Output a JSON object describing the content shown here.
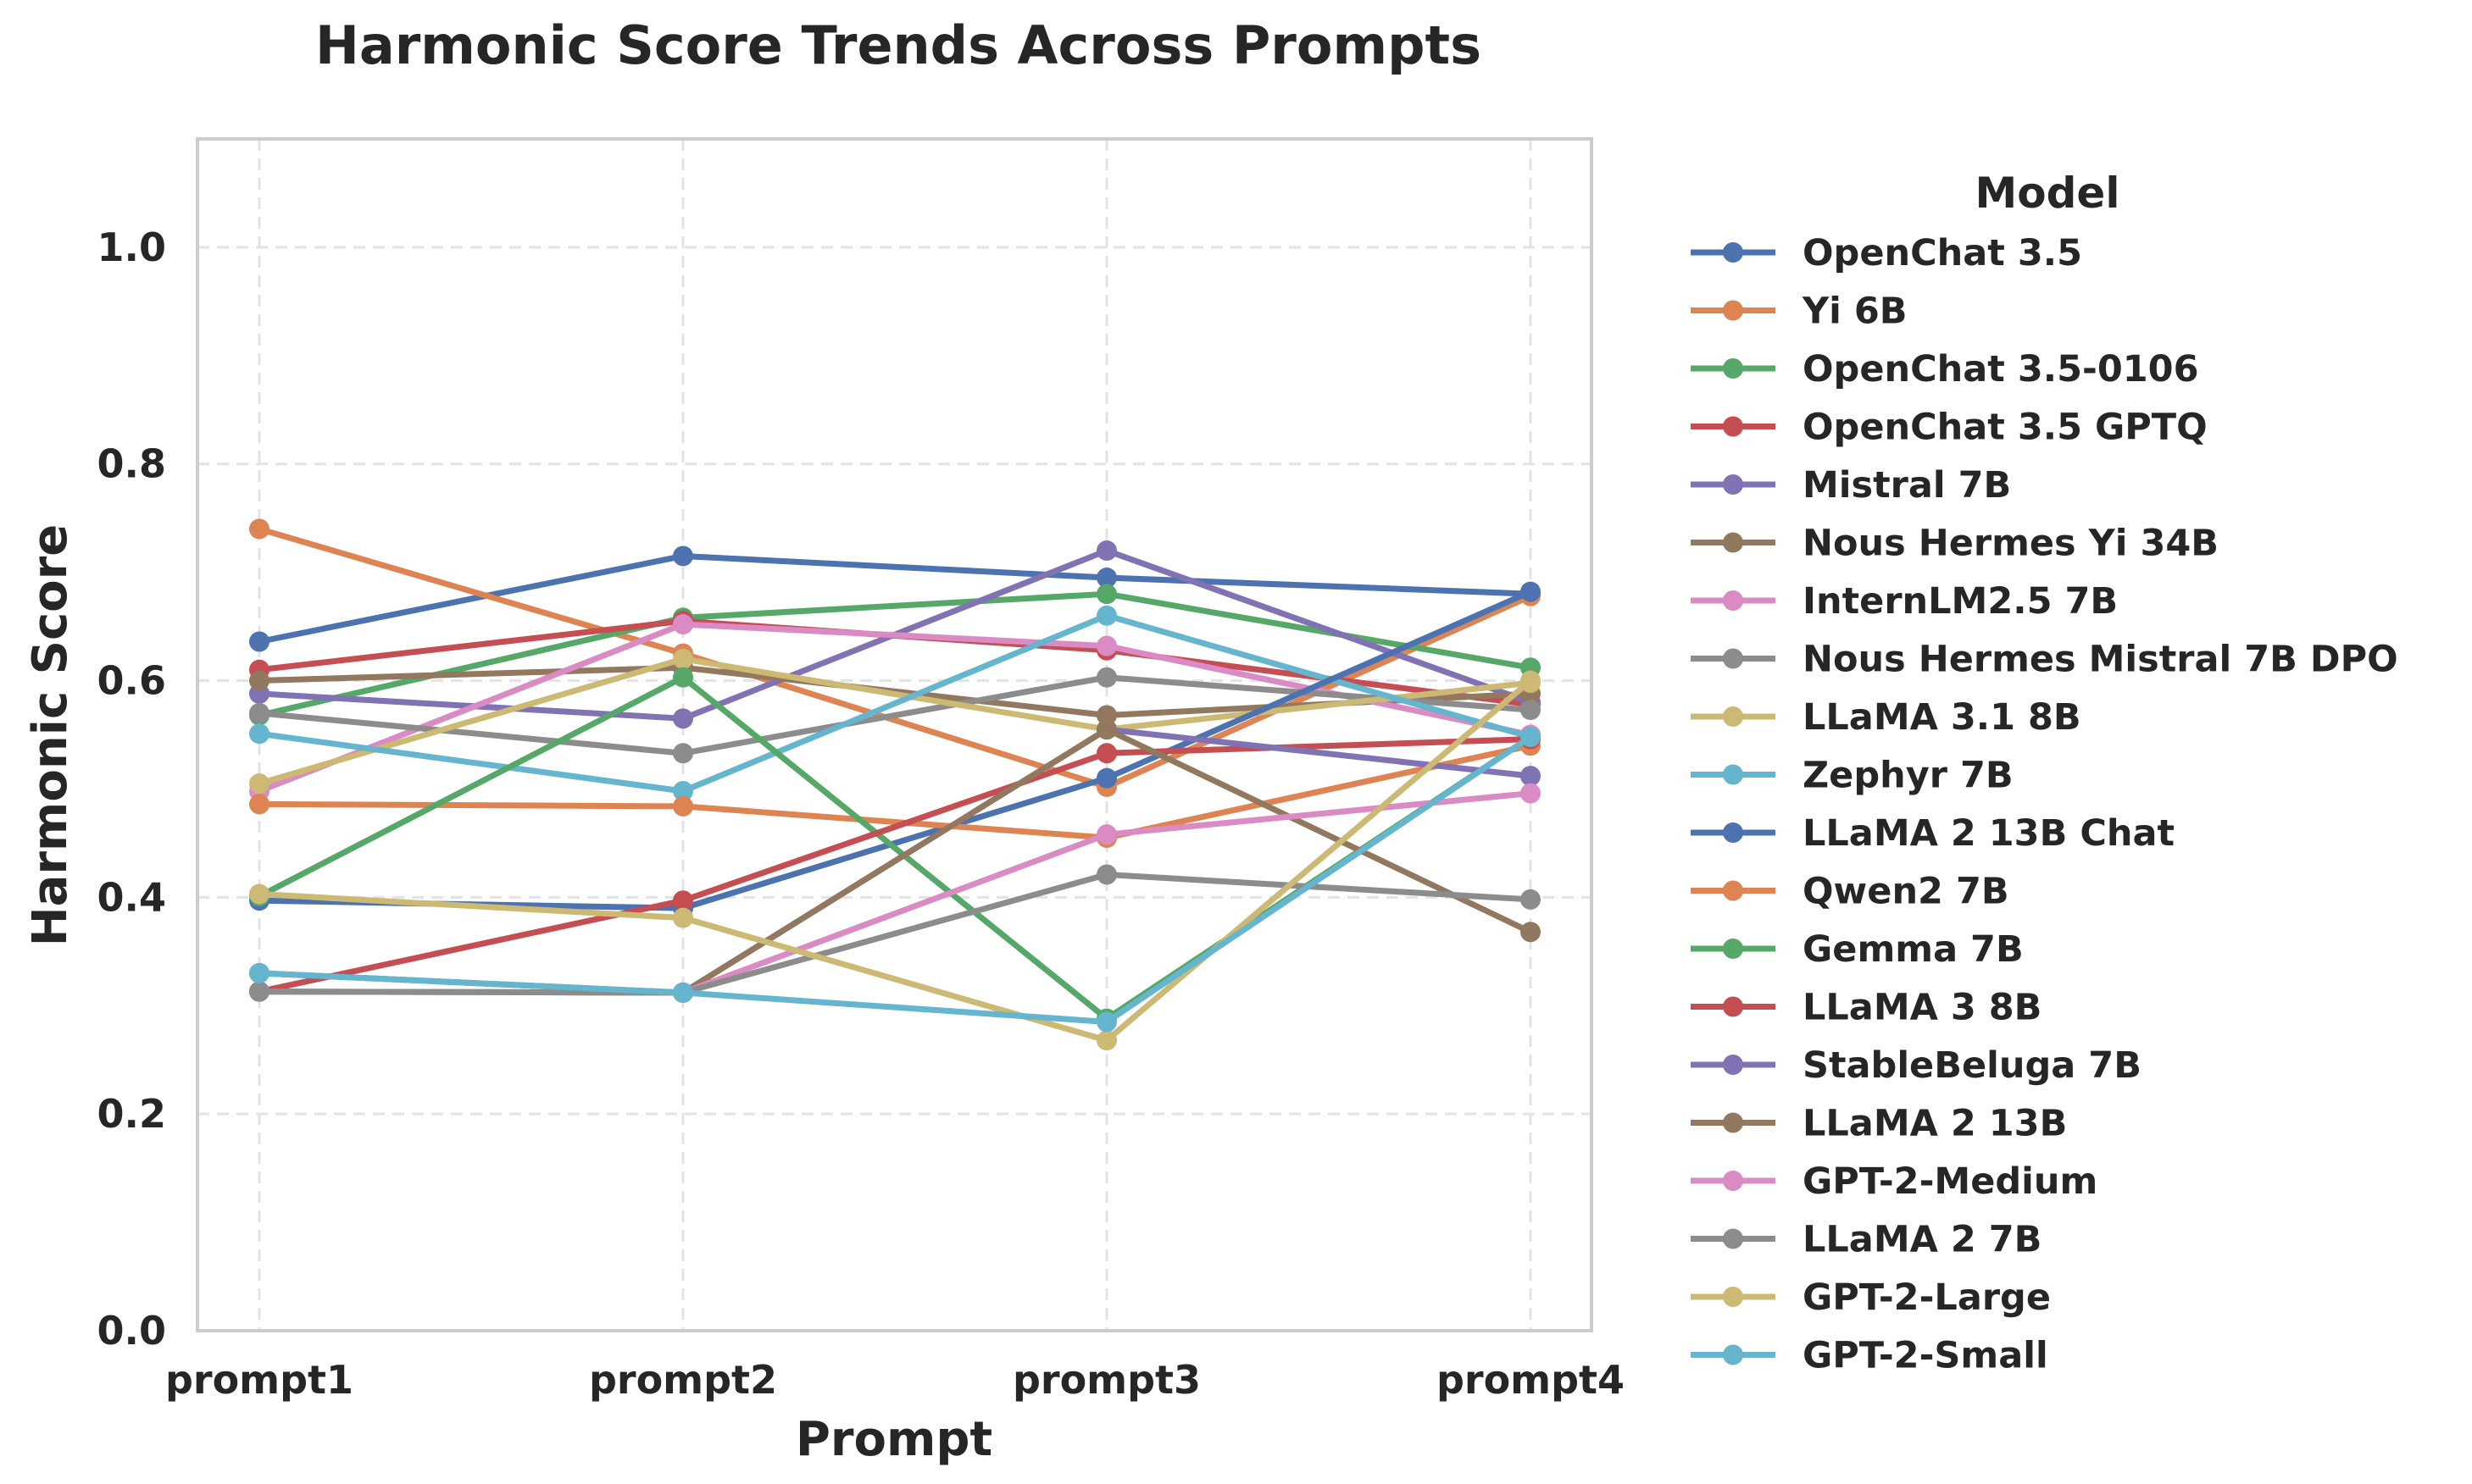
{
  "chart_data": {
    "type": "line",
    "title": "Harmonic Score Trends Across Prompts",
    "xlabel": "Prompt",
    "ylabel": "Harmonic Score",
    "categories": [
      "prompt1",
      "prompt2",
      "prompt3",
      "prompt4"
    ],
    "ylim": [
      0,
      1.1
    ],
    "yticks": [
      0.0,
      0.2,
      0.4,
      0.6,
      0.8,
      1.0
    ],
    "ytick_labels": [
      "0.0",
      "0.2",
      "0.4",
      "0.6",
      "0.8",
      "1.0"
    ],
    "grid": true,
    "legend_title": "Model",
    "legend_position": "outside-right",
    "series": [
      {
        "name": "OpenChat 3.5",
        "color": "#4c72b0",
        "values": [
          0.636,
          0.715,
          0.695,
          0.68
        ]
      },
      {
        "name": "Yi 6B",
        "color": "#dd8452",
        "values": [
          0.74,
          0.625,
          0.502,
          0.678
        ]
      },
      {
        "name": "OpenChat 3.5-0106",
        "color": "#55a868",
        "values": [
          0.568,
          0.658,
          0.68,
          0.612
        ]
      },
      {
        "name": "OpenChat 3.5 GPTQ",
        "color": "#c44e52",
        "values": [
          0.61,
          0.655,
          0.628,
          0.578
        ]
      },
      {
        "name": "Mistral 7B",
        "color": "#8172b3",
        "values": [
          0.588,
          0.565,
          0.72,
          0.58
        ]
      },
      {
        "name": "Nous Hermes Yi 34B",
        "color": "#937860",
        "values": [
          0.6,
          0.612,
          0.568,
          0.588
        ]
      },
      {
        "name": "InternLM2.5 7B",
        "color": "#da8bc3",
        "values": [
          0.498,
          0.652,
          0.632,
          0.55
        ]
      },
      {
        "name": "Nous Hermes Mistral 7B DPO",
        "color": "#8c8c8c",
        "values": [
          0.57,
          0.533,
          0.603,
          0.573
        ]
      },
      {
        "name": "LLaMA 3.1 8B",
        "color": "#ccb974",
        "values": [
          0.505,
          0.62,
          0.555,
          0.598
        ]
      },
      {
        "name": "Zephyr 7B",
        "color": "#64b5cd",
        "values": [
          0.551,
          0.498,
          0.66,
          0.548
        ]
      },
      {
        "name": "LLaMA 2 13B Chat",
        "color": "#4c72b0",
        "values": [
          0.397,
          0.39,
          0.51,
          0.682
        ]
      },
      {
        "name": "Qwen2 7B",
        "color": "#dd8452",
        "values": [
          0.486,
          0.484,
          0.455,
          0.54
        ]
      },
      {
        "name": "Gemma 7B",
        "color": "#55a868",
        "values": [
          0.401,
          0.603,
          0.288,
          0.548
        ]
      },
      {
        "name": "LLaMA 3 8B",
        "color": "#c44e52",
        "values": [
          0.313,
          0.397,
          0.533,
          0.546
        ]
      },
      {
        "name": "StableBeluga 7B",
        "color": "#8172b3",
        "values": [
          0.33,
          0.312,
          0.555,
          0.512
        ]
      },
      {
        "name": "LLaMA 2 13B",
        "color": "#937860",
        "values": [
          0.313,
          0.312,
          0.555,
          0.368
        ]
      },
      {
        "name": "GPT-2-Medium",
        "color": "#da8bc3",
        "values": [
          0.313,
          0.312,
          0.458,
          0.496
        ]
      },
      {
        "name": "LLaMA 2 7B",
        "color": "#8c8c8c",
        "values": [
          0.313,
          0.312,
          0.421,
          0.398
        ]
      },
      {
        "name": "GPT-2-Large",
        "color": "#ccb974",
        "values": [
          0.403,
          0.381,
          0.268,
          0.6
        ]
      },
      {
        "name": "GPT-2-Small",
        "color": "#64b5cd",
        "values": [
          0.33,
          0.312,
          0.285,
          0.548
        ]
      }
    ]
  }
}
